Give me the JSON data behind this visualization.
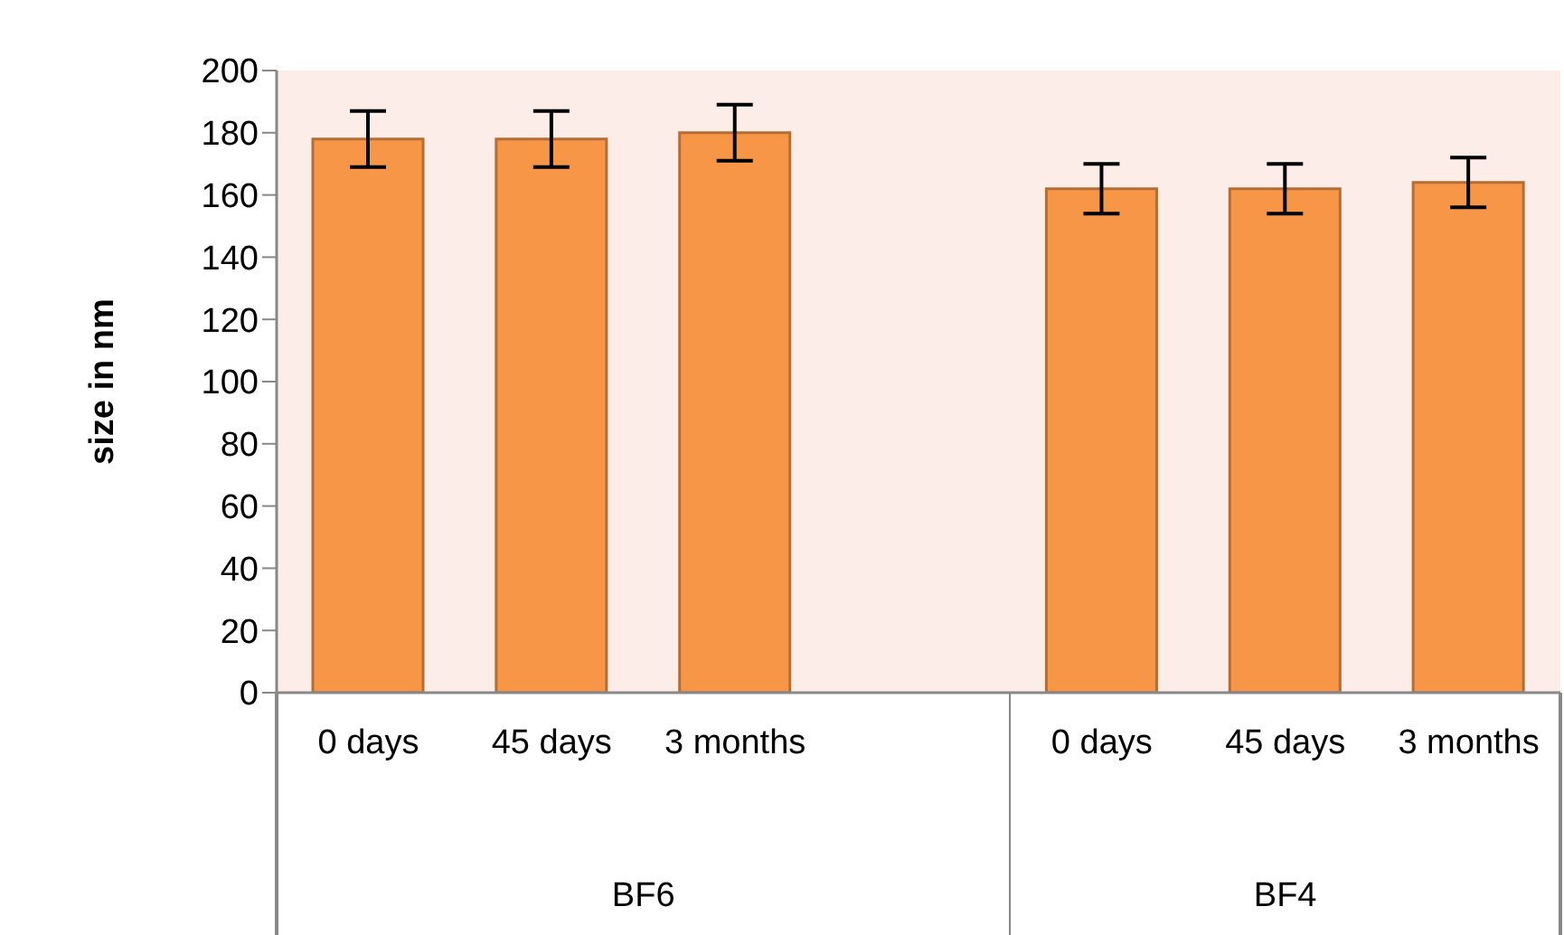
{
  "chart_data": {
    "type": "bar",
    "ylabel": "size in nm",
    "categories": [
      "0 days",
      "45 days",
      "3 months",
      null,
      "0 days",
      "45 days",
      "3 months"
    ],
    "values": [
      178,
      178,
      180,
      null,
      162,
      162,
      164
    ],
    "errors": [
      9,
      9,
      9,
      null,
      8,
      8,
      8
    ],
    "color": "#f79646",
    "ylim": [
      0,
      200
    ],
    "yticks": [
      0,
      20,
      40,
      60,
      80,
      100,
      120,
      140,
      160,
      180,
      200
    ],
    "annotations": [
      "BF6",
      "BF4"
    ]
  }
}
